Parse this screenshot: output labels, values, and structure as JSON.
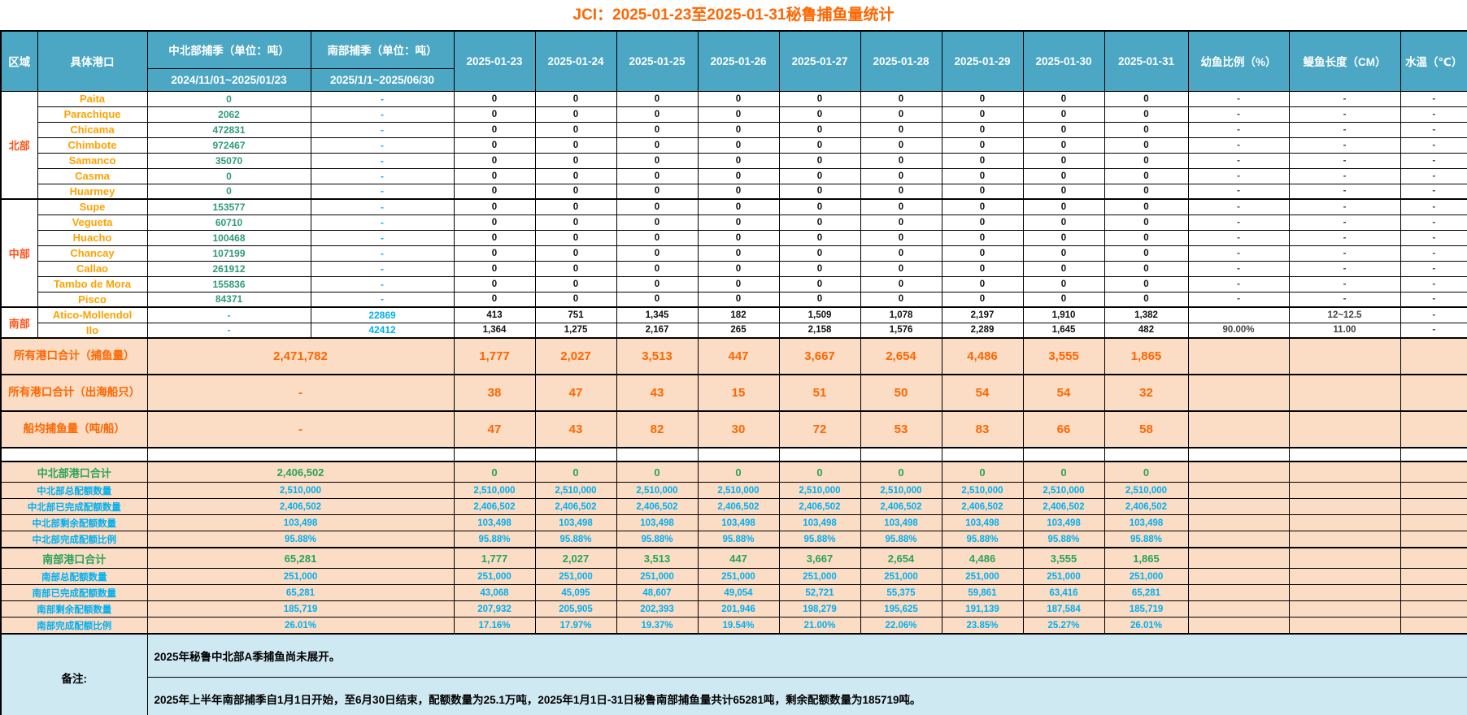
{
  "title": "JCI：2025-01-23至2025-01-31秘鲁捕鱼量统计",
  "colors": {
    "header_bg": "#4BA7C3",
    "title_orange": "#FF6600",
    "region_orange": "#FF5218",
    "port_orange": "#FFA200",
    "green_val": "#2E9B78",
    "blue_val": "#00B0F0",
    "peach_bg": "#FBDCC5",
    "summary_orange": "#FF6600",
    "quota_green": "#28A35C",
    "note_bg": "#CFE9F3"
  },
  "header": {
    "region": "区域",
    "port": "具体港口",
    "nc_season": "中北部捕季（单位：吨）",
    "nc_range": "2024/11/01~2025/01/23",
    "s_season": "南部捕季（单位：吨）",
    "s_range": "2025/1/1~2025/06/30",
    "dates": [
      "2025-01-23",
      "2025-01-24",
      "2025-01-25",
      "2025-01-26",
      "2025-01-27",
      "2025-01-28",
      "2025-01-29",
      "2025-01-30",
      "2025-01-31"
    ],
    "juvenile": "幼鱼比例（%）",
    "length": "鳀鱼长度（CM）",
    "temp": "水温（℃）"
  },
  "regions": [
    {
      "name": "北部",
      "ports": [
        {
          "name": "Paita",
          "nc": "0",
          "s": "-",
          "daily": [
            "0",
            "0",
            "0",
            "0",
            "0",
            "0",
            "0",
            "0",
            "0"
          ],
          "juvenile": "-",
          "length": "-",
          "temp": "-"
        },
        {
          "name": "Parachique",
          "nc": "2062",
          "s": "-",
          "daily": [
            "0",
            "0",
            "0",
            "0",
            "0",
            "0",
            "0",
            "0",
            "0"
          ],
          "juvenile": "-",
          "length": "-",
          "temp": "-"
        },
        {
          "name": "Chicama",
          "nc": "472831",
          "s": "-",
          "daily": [
            "0",
            "0",
            "0",
            "0",
            "0",
            "0",
            "0",
            "0",
            "0"
          ],
          "juvenile": "-",
          "length": "-",
          "temp": "-"
        },
        {
          "name": "Chimbote",
          "nc": "972467",
          "s": "-",
          "daily": [
            "0",
            "0",
            "0",
            "0",
            "0",
            "0",
            "0",
            "0",
            "0"
          ],
          "juvenile": "-",
          "length": "-",
          "temp": "-"
        },
        {
          "name": "Samanco",
          "nc": "35070",
          "s": "-",
          "daily": [
            "0",
            "0",
            "0",
            "0",
            "0",
            "0",
            "0",
            "0",
            "0"
          ],
          "juvenile": "-",
          "length": "-",
          "temp": "-"
        },
        {
          "name": "Casma",
          "nc": "0",
          "s": "-",
          "daily": [
            "0",
            "0",
            "0",
            "0",
            "0",
            "0",
            "0",
            "0",
            "0"
          ],
          "juvenile": "-",
          "length": "-",
          "temp": "-"
        },
        {
          "name": "Huarmey",
          "nc": "0",
          "s": "-",
          "daily": [
            "0",
            "0",
            "0",
            "0",
            "0",
            "0",
            "0",
            "0",
            "0"
          ],
          "juvenile": "-",
          "length": "-",
          "temp": "-"
        }
      ]
    },
    {
      "name": "中部",
      "ports": [
        {
          "name": "Supe",
          "nc": "153577",
          "s": "-",
          "daily": [
            "0",
            "0",
            "0",
            "0",
            "0",
            "0",
            "0",
            "0",
            "0"
          ],
          "juvenile": "-",
          "length": "-",
          "temp": "-"
        },
        {
          "name": "Vegueta",
          "nc": "60710",
          "s": "-",
          "daily": [
            "0",
            "0",
            "0",
            "0",
            "0",
            "0",
            "0",
            "0",
            "0"
          ],
          "juvenile": "-",
          "length": "-",
          "temp": "-"
        },
        {
          "name": "Huacho",
          "nc": "100468",
          "s": "-",
          "daily": [
            "0",
            "0",
            "0",
            "0",
            "0",
            "0",
            "0",
            "0",
            "0"
          ],
          "juvenile": "-",
          "length": "-",
          "temp": "-"
        },
        {
          "name": "Chancay",
          "nc": "107199",
          "s": "-",
          "daily": [
            "0",
            "0",
            "0",
            "0",
            "0",
            "0",
            "0",
            "0",
            "0"
          ],
          "juvenile": "-",
          "length": "-",
          "temp": "-"
        },
        {
          "name": "Callao",
          "nc": "261912",
          "s": "-",
          "daily": [
            "0",
            "0",
            "0",
            "0",
            "0",
            "0",
            "0",
            "0",
            "0"
          ],
          "juvenile": "-",
          "length": "-",
          "temp": "-"
        },
        {
          "name": "Tambo de Mora",
          "nc": "155836",
          "s": "-",
          "daily": [
            "0",
            "0",
            "0",
            "0",
            "0",
            "0",
            "0",
            "0",
            "0"
          ],
          "juvenile": "-",
          "length": "-",
          "temp": "-"
        },
        {
          "name": "Pisco",
          "nc": "84371",
          "s": "-",
          "daily": [
            "0",
            "0",
            "0",
            "0",
            "0",
            "0",
            "0",
            "0",
            "0"
          ],
          "juvenile": "-",
          "length": "-",
          "temp": "-"
        }
      ]
    },
    {
      "name": "南部",
      "ports": [
        {
          "name": "Atico-Mollendol",
          "nc": "-",
          "s": "22869",
          "daily": [
            "413",
            "751",
            "1,345",
            "182",
            "1,509",
            "1,078",
            "2,197",
            "1,910",
            "1,382"
          ],
          "juvenile": "",
          "length": "12~12.5",
          "temp": "-"
        },
        {
          "name": "Ilo",
          "nc": "-",
          "s": "42412",
          "daily": [
            "1,364",
            "1,275",
            "2,167",
            "265",
            "2,158",
            "1,576",
            "2,289",
            "1,645",
            "482"
          ],
          "juvenile": "90.00%",
          "length": "11.00",
          "temp": "-"
        }
      ]
    }
  ],
  "summary_rows": [
    {
      "label": "所有港口合计（捕鱼量）",
      "total": "2,471,782",
      "daily": [
        "1,777",
        "2,027",
        "3,513",
        "447",
        "3,667",
        "2,654",
        "4,486",
        "3,555",
        "1,865"
      ]
    },
    {
      "label": "所有港口合计（出海船只）",
      "total": "-",
      "daily": [
        "38",
        "47",
        "43",
        "15",
        "51",
        "50",
        "54",
        "54",
        "32"
      ]
    },
    {
      "label": "船均捕鱼量（吨/船）",
      "total": "-",
      "daily": [
        "47",
        "43",
        "82",
        "30",
        "72",
        "53",
        "83",
        "66",
        "58"
      ]
    }
  ],
  "quota_rows": [
    {
      "label": "中北部港口合计",
      "total": "2,406,502",
      "style": "green",
      "daily": [
        "0",
        "0",
        "0",
        "0",
        "0",
        "0",
        "0",
        "0",
        "0"
      ]
    },
    {
      "label": "中北部总配额数量",
      "total": "2,510,000",
      "style": "blue",
      "daily": [
        "2,510,000",
        "2,510,000",
        "2,510,000",
        "2,510,000",
        "2,510,000",
        "2,510,000",
        "2,510,000",
        "2,510,000",
        "2,510,000"
      ]
    },
    {
      "label": "中北部已完成配额数量",
      "total": "2,406,502",
      "style": "blue",
      "daily": [
        "2,406,502",
        "2,406,502",
        "2,406,502",
        "2,406,502",
        "2,406,502",
        "2,406,502",
        "2,406,502",
        "2,406,502",
        "2,406,502"
      ]
    },
    {
      "label": "中北部剩余配额数量",
      "total": "103,498",
      "style": "blue",
      "daily": [
        "103,498",
        "103,498",
        "103,498",
        "103,498",
        "103,498",
        "103,498",
        "103,498",
        "103,498",
        "103,498"
      ]
    },
    {
      "label": "中北部完成配额比例",
      "total": "95.88%",
      "style": "blue",
      "daily": [
        "95.88%",
        "95.88%",
        "95.88%",
        "95.88%",
        "95.88%",
        "95.88%",
        "95.88%",
        "95.88%",
        "95.88%"
      ]
    },
    {
      "label": "南部港口合计",
      "total": "65,281",
      "style": "green",
      "daily": [
        "1,777",
        "2,027",
        "3,513",
        "447",
        "3,667",
        "2,654",
        "4,486",
        "3,555",
        "1,865"
      ]
    },
    {
      "label": "南部总配额数量",
      "total": "251,000",
      "style": "blue",
      "daily": [
        "251,000",
        "251,000",
        "251,000",
        "251,000",
        "251,000",
        "251,000",
        "251,000",
        "251,000",
        "251,000"
      ]
    },
    {
      "label": "南部已完成配额数量",
      "total": "65,281",
      "style": "blue",
      "daily": [
        "43,068",
        "45,095",
        "48,607",
        "49,054",
        "52,721",
        "55,375",
        "59,861",
        "63,416",
        "65,281"
      ]
    },
    {
      "label": "南部剩余配额数量",
      "total": "185,719",
      "style": "blue",
      "daily": [
        "207,932",
        "205,905",
        "202,393",
        "201,946",
        "198,279",
        "195,625",
        "191,139",
        "187,584",
        "185,719"
      ]
    },
    {
      "label": "南部完成配额比例",
      "total": "26.01%",
      "style": "blue",
      "daily": [
        "17.16%",
        "17.97%",
        "19.37%",
        "19.54%",
        "21.00%",
        "22.06%",
        "23.85%",
        "25.27%",
        "26.01%"
      ]
    }
  ],
  "notes": {
    "label": "备注:",
    "lines": [
      "2025年秘鲁中北部A季捕鱼尚未展开。",
      "2025年上半年南部捕季自1月1日开始，至6月30日结束，配额数量为25.1万吨，2025年1月1日-31日秘鲁南部捕鱼量共计65281吨，剩余配额数量为185719吨。"
    ]
  }
}
